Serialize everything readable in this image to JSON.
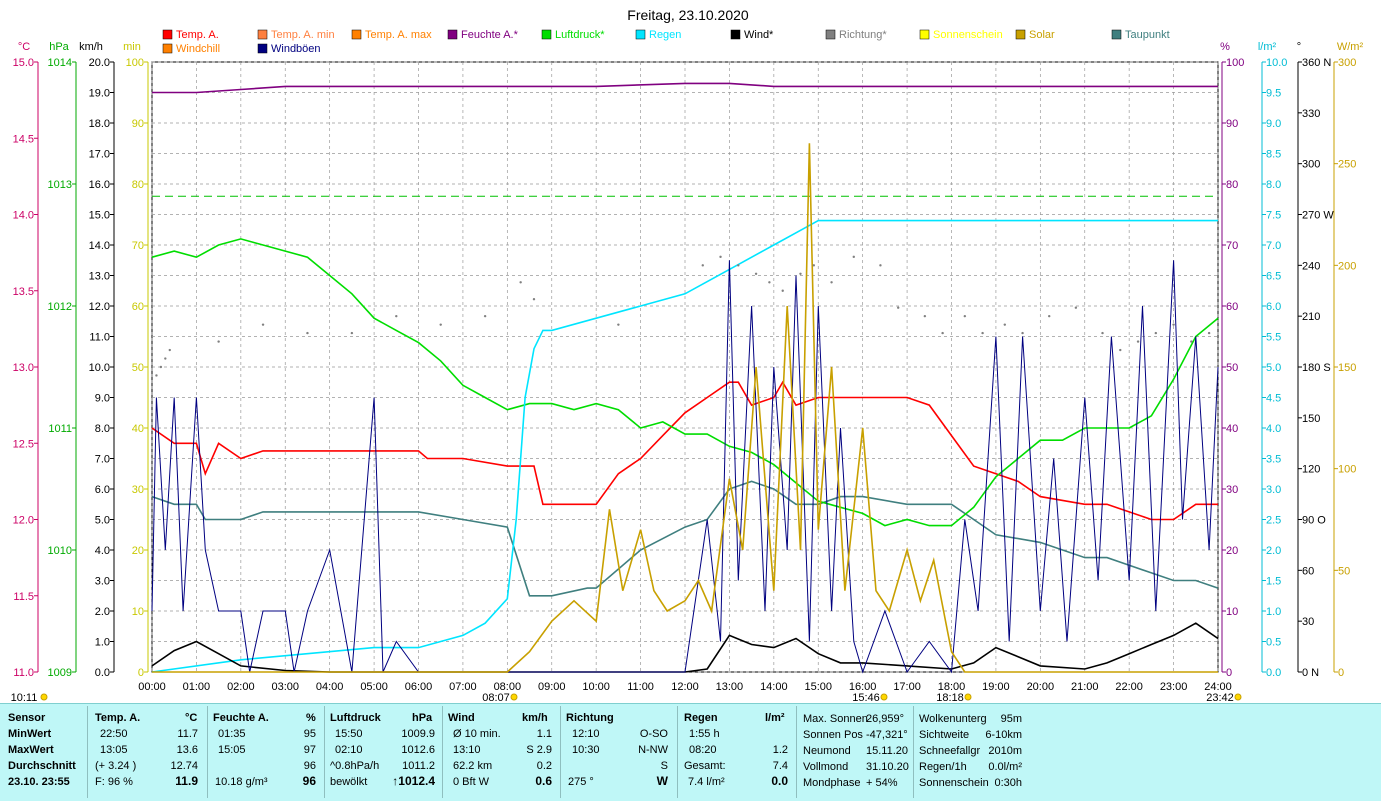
{
  "title": "Freitag, 23.10.2020",
  "legend": [
    {
      "label": "Temp. A.",
      "color": "#ff0000"
    },
    {
      "label": "Temp. A. min",
      "color": "#ff8040"
    },
    {
      "label": "Temp. A. max",
      "color": "#ff8000"
    },
    {
      "label": "Feuchte A.*",
      "color": "#800080"
    },
    {
      "label": "Luftdruck*",
      "color": "#00dd00"
    },
    {
      "label": "Regen",
      "color": "#00e5ff"
    },
    {
      "label": "Wind*",
      "color": "#000000"
    },
    {
      "label": "Richtung*",
      "color": "#808080"
    },
    {
      "label": "Sonnenschein",
      "color": "#ffff00"
    },
    {
      "label": "Solar",
      "color": "#c8a000"
    },
    {
      "label": "Taupunkt",
      "color": "#3f7f7f"
    },
    {
      "label": "Windchill",
      "color": "#ff8000"
    },
    {
      "label": "Windböen",
      "color": "#000080"
    }
  ],
  "axis_units": {
    "temp": "°C",
    "pressure": "hPa",
    "wind": "km/h",
    "sun": "min",
    "humidity": "%",
    "rain": "l/m²",
    "direction": "°",
    "solar": "W/m²"
  },
  "left_axes": {
    "temp": [
      "15.0",
      "14.5",
      "14.0",
      "13.5",
      "13.0",
      "12.5",
      "12.0",
      "11.5",
      "11.0"
    ],
    "pressure": [
      "1014",
      "1013",
      "1012",
      "1011",
      "1010",
      "1009"
    ],
    "wind": [
      "20.0",
      "19.0",
      "18.0",
      "17.0",
      "16.0",
      "15.0",
      "14.0",
      "13.0",
      "12.0",
      "11.0",
      "10.0",
      "9.0",
      "8.0",
      "7.0",
      "6.0",
      "5.0",
      "4.0",
      "3.0",
      "2.0",
      "1.0",
      "0.0"
    ],
    "sun": [
      "100",
      "90",
      "80",
      "70",
      "60",
      "50",
      "40",
      "30",
      "20",
      "10",
      "0"
    ]
  },
  "right_axes": {
    "humidity": [
      "100",
      "90",
      "80",
      "70",
      "60",
      "50",
      "40",
      "30",
      "20",
      "10",
      "0"
    ],
    "rain": [
      "10.0",
      "9.5",
      "9.0",
      "8.5",
      "8.0",
      "7.5",
      "7.0",
      "6.5",
      "6.0",
      "5.5",
      "5.0",
      "4.5",
      "4.0",
      "3.5",
      "3.0",
      "2.5",
      "2.0",
      "1.5",
      "1.0",
      "0.5",
      "0.0"
    ],
    "direction": [
      "360 N",
      "330",
      "300",
      "270 W",
      "240",
      "210",
      "180 S",
      "150",
      "120",
      "90 O",
      "60",
      "30",
      "0 N"
    ],
    "solar": [
      "300",
      "250",
      "200",
      "150",
      "100",
      "50",
      "0"
    ]
  },
  "time_axis": [
    "00:00",
    "01:00",
    "02:00",
    "03:00",
    "04:00",
    "05:00",
    "06:00",
    "07:00",
    "08:00",
    "09:00",
    "10:00",
    "11:00",
    "12:00",
    "13:00",
    "14:00",
    "15:00",
    "16:00",
    "17:00",
    "18:00",
    "19:00",
    "20:00",
    "21:00",
    "22:00",
    "23:00",
    "24:00"
  ],
  "sun_markers": [
    "10:11",
    "08:07",
    "15:46",
    "18:18",
    "23:42"
  ],
  "chart_data": {
    "type": "line",
    "x_unit": "hours",
    "xlim": [
      0,
      24
    ],
    "series": [
      {
        "name": "Temp. A.",
        "axis": "temp",
        "color": "#ff0000",
        "x": [
          0,
          0.5,
          1,
          1.2,
          1.5,
          2,
          2.5,
          3,
          4,
          5,
          6,
          6.2,
          7,
          8,
          8.6,
          8.8,
          9,
          10,
          10.5,
          11,
          11.5,
          12,
          12.5,
          13,
          13.2,
          13.5,
          14,
          14.2,
          14.5,
          15,
          15.5,
          16,
          17,
          17.5,
          18,
          18.5,
          19,
          19.5,
          20,
          21,
          21.5,
          22,
          22.5,
          23,
          23.5,
          24
        ],
        "y": [
          12.6,
          12.5,
          12.5,
          12.3,
          12.5,
          12.4,
          12.45,
          12.45,
          12.45,
          12.45,
          12.45,
          12.4,
          12.4,
          12.35,
          12.35,
          12.1,
          12.1,
          12.1,
          12.3,
          12.4,
          12.55,
          12.7,
          12.8,
          12.9,
          12.9,
          12.75,
          12.8,
          12.9,
          12.75,
          12.8,
          12.8,
          12.8,
          12.8,
          12.75,
          12.55,
          12.35,
          12.3,
          12.25,
          12.15,
          12.1,
          12.1,
          12.05,
          12.0,
          12.0,
          12.1,
          12.1
        ]
      },
      {
        "name": "Taupunkt",
        "axis": "temp",
        "color": "#3f7f7f",
        "x": [
          0,
          0.5,
          1,
          1.2,
          1.5,
          2,
          2.5,
          3,
          4,
          5,
          6,
          7,
          8,
          8.5,
          9,
          9.8,
          10,
          11,
          12,
          12.5,
          13,
          13.5,
          14,
          14.5,
          15,
          15.5,
          16,
          17,
          18,
          18.5,
          19,
          20,
          21,
          21.5,
          22,
          22.5,
          23,
          23.5,
          24
        ],
        "y": [
          12.15,
          12.1,
          12.1,
          12.0,
          12.0,
          12.0,
          12.05,
          12.05,
          12.05,
          12.05,
          12.05,
          12.0,
          11.95,
          11.5,
          11.5,
          11.55,
          11.55,
          11.8,
          11.95,
          12.0,
          12.2,
          12.25,
          12.2,
          12.1,
          12.1,
          12.15,
          12.15,
          12.1,
          12.1,
          12.0,
          11.9,
          11.85,
          11.75,
          11.75,
          11.7,
          11.65,
          11.6,
          11.6,
          11.55
        ]
      },
      {
        "name": "Feuchte A.*",
        "axis": "humidity",
        "color": "#800080",
        "x": [
          0,
          1,
          2,
          3,
          4,
          5,
          6,
          8,
          10,
          12,
          13,
          14,
          15,
          16,
          18,
          20,
          22,
          24
        ],
        "y": [
          95,
          95,
          95.5,
          96,
          96,
          96,
          96,
          96,
          96,
          96.5,
          96.5,
          96,
          96,
          96,
          96,
          96,
          96,
          96
        ]
      },
      {
        "name": "Luftdruck*",
        "axis": "pressure",
        "color": "#00dd00",
        "x": [
          0,
          0.5,
          1,
          1.5,
          2,
          2.5,
          3,
          3.5,
          4,
          4.5,
          5,
          5.5,
          6,
          6.5,
          7,
          7.5,
          8,
          8.5,
          9,
          9.5,
          10,
          10.5,
          11,
          11.5,
          12,
          12.5,
          13,
          13.5,
          14,
          14.5,
          15,
          15.5,
          16,
          16.5,
          17,
          17.5,
          18,
          18.5,
          19,
          19.5,
          20,
          20.5,
          21,
          21.5,
          22,
          22.5,
          23,
          23.5,
          24
        ],
        "y": [
          1012.4,
          1012.45,
          1012.4,
          1012.5,
          1012.55,
          1012.5,
          1012.45,
          1012.4,
          1012.25,
          1012.1,
          1011.9,
          1011.8,
          1011.7,
          1011.55,
          1011.35,
          1011.25,
          1011.15,
          1011.2,
          1011.2,
          1011.15,
          1011.2,
          1011.15,
          1011.0,
          1011.05,
          1010.95,
          1010.95,
          1010.85,
          1010.8,
          1010.7,
          1010.55,
          1010.4,
          1010.35,
          1010.3,
          1010.2,
          1010.25,
          1010.2,
          1010.2,
          1010.35,
          1010.6,
          1010.75,
          1010.9,
          1010.9,
          1011.0,
          1011.0,
          1011.0,
          1011.1,
          1011.4,
          1011.75,
          1011.9
        ]
      },
      {
        "name": "Regen",
        "axis": "rain",
        "color": "#00e5ff",
        "x": [
          0,
          2,
          5,
          6,
          7,
          7.5,
          8,
          8.2,
          8.4,
          8.6,
          8.8,
          9,
          10,
          11,
          12,
          13,
          14,
          14.5,
          15,
          16,
          18,
          20,
          22,
          24
        ],
        "y": [
          0,
          0.2,
          0.4,
          0.4,
          0.6,
          0.8,
          1.2,
          2.5,
          4.5,
          5.3,
          5.6,
          5.6,
          5.8,
          6.0,
          6.2,
          6.6,
          7.0,
          7.2,
          7.4,
          7.4,
          7.4,
          7.4,
          7.4,
          7.4
        ]
      },
      {
        "name": "Wind*",
        "axis": "wind",
        "color": "#000000",
        "x": [
          0,
          0.5,
          1,
          1.5,
          2,
          3,
          4,
          5,
          6,
          8,
          10,
          12,
          12.5,
          13,
          13.5,
          14,
          14.5,
          15,
          15.5,
          16,
          17,
          18,
          18.5,
          19,
          20,
          21,
          21.5,
          22,
          22.5,
          23,
          23.5,
          24
        ],
        "y": [
          0.2,
          0.7,
          1.0,
          0.6,
          0.2,
          0.05,
          0,
          0,
          0,
          0,
          0,
          0,
          0.1,
          1.2,
          0.9,
          0.8,
          1.1,
          0.6,
          0.3,
          0.3,
          0.2,
          0.1,
          0.3,
          0.8,
          0.2,
          0.1,
          0.3,
          0.6,
          0.9,
          1.2,
          1.6,
          1.1
        ]
      },
      {
        "name": "Windböen",
        "axis": "wind",
        "color": "#000080",
        "x": [
          0,
          0.1,
          0.3,
          0.5,
          0.7,
          1,
          1.2,
          1.5,
          2,
          2.2,
          2.5,
          3,
          3.2,
          3.5,
          4,
          4.5,
          5,
          5.2,
          5.5,
          6,
          8,
          9,
          10,
          11,
          12,
          12.5,
          12.8,
          13,
          13.2,
          13.5,
          13.8,
          14,
          14.3,
          14.5,
          14.8,
          15,
          15.3,
          15.5,
          15.8,
          16,
          16.5,
          17,
          17.5,
          18,
          18.3,
          18.6,
          19,
          19.3,
          19.6,
          20,
          20.3,
          20.6,
          21,
          21.3,
          21.6,
          22,
          22.3,
          22.6,
          23,
          23.2,
          23.5,
          23.8,
          24
        ],
        "y": [
          2,
          9,
          4,
          9,
          2,
          9,
          4,
          2,
          2,
          0,
          2,
          2,
          0,
          2,
          4,
          0,
          9,
          0,
          1,
          0,
          0,
          0,
          0,
          0,
          0,
          5,
          1,
          13.5,
          3,
          12,
          2,
          10,
          4,
          13,
          1,
          12,
          2,
          8,
          1,
          0,
          2,
          0,
          1,
          0,
          5,
          2,
          11,
          1,
          11,
          2,
          7,
          1,
          9,
          3,
          11,
          3,
          12,
          2,
          13.5,
          5,
          11,
          4,
          10
        ]
      },
      {
        "name": "Solar",
        "axis": "solar",
        "color": "#c8a000",
        "x": [
          0,
          8,
          8.5,
          9,
          9.5,
          10,
          10.3,
          10.6,
          11,
          11.3,
          11.6,
          12,
          12.3,
          12.6,
          13,
          13.3,
          13.6,
          14,
          14.3,
          14.6,
          14.8,
          15,
          15.3,
          15.6,
          16,
          16.3,
          16.6,
          17,
          17.3,
          17.6,
          18,
          18.3,
          24
        ],
        "y": [
          0,
          0,
          10,
          25,
          35,
          25,
          80,
          40,
          70,
          40,
          30,
          35,
          45,
          30,
          95,
          60,
          150,
          40,
          180,
          60,
          260,
          70,
          150,
          40,
          120,
          40,
          30,
          60,
          35,
          55,
          10,
          0,
          0
        ]
      }
    ],
    "points": [
      {
        "name": "Richtung*",
        "axis": "direction",
        "color": "#808080",
        "x": [
          0.1,
          0.2,
          0.3,
          0.4,
          1.5,
          2.5,
          3.5,
          4.5,
          5.5,
          6.5,
          7.5,
          8.3,
          8.6,
          10.5,
          12.4,
          12.8,
          13.2,
          13.6,
          13.9,
          14.2,
          14.6,
          14.9,
          15.3,
          15.8,
          16.4,
          16.8,
          17.4,
          17.8,
          18.3,
          18.7,
          19.2,
          19.6,
          20.2,
          20.8,
          21.4,
          21.8,
          22.2,
          22.6,
          23.0,
          23.4,
          23.8
        ],
        "y": [
          175,
          180,
          185,
          190,
          195,
          205,
          200,
          200,
          210,
          205,
          210,
          230,
          220,
          205,
          240,
          245,
          240,
          235,
          230,
          225,
          235,
          240,
          230,
          245,
          240,
          215,
          210,
          200,
          210,
          200,
          205,
          200,
          210,
          215,
          200,
          190,
          195,
          200,
          205,
          195,
          200
        ]
      }
    ],
    "min_temp_line": {
      "axis": "pressure",
      "value": 1012.9,
      "color": "#00c000"
    }
  },
  "stats": {
    "sensor": {
      "header": "Sensor",
      "rows": [
        "MinWert",
        "MaxWert",
        "Durchschnitt",
        "23.10.  23:55"
      ]
    },
    "temp": {
      "header": "Temp. A.",
      "unit": "°C",
      "rows": [
        [
          "22:50",
          "11.7"
        ],
        [
          "13:05",
          "13.6"
        ],
        [
          "(+ 3.24 )",
          "12.74"
        ],
        [
          "F: 96 %",
          "11.9"
        ]
      ]
    },
    "humidity": {
      "header": "Feuchte A.",
      "unit": "%",
      "rows": [
        [
          "01:35",
          "95"
        ],
        [
          "15:05",
          "97"
        ],
        [
          "",
          "96"
        ],
        [
          "10.18 g/m³",
          "96"
        ]
      ]
    },
    "pressure": {
      "header": "Luftdruck",
      "unit": "hPa",
      "rows": [
        [
          "15:50",
          "1009.9"
        ],
        [
          "02:10",
          "1012.6"
        ],
        [
          "^0.8hPa/h",
          "1011.2"
        ],
        [
          "bewölkt",
          "↑1012.4"
        ]
      ]
    },
    "wind": {
      "header": "Wind",
      "unit": "km/h",
      "rows": [
        [
          "Ø 10 min.",
          "1.1"
        ],
        [
          "13:10",
          "S 2.9"
        ],
        [
          "62.2 km",
          "0.2"
        ],
        [
          "0 Bft W",
          "0.6"
        ]
      ]
    },
    "direction": {
      "header": "Richtung",
      "rows": [
        [
          "12:10",
          "O-SO"
        ],
        [
          "10:30",
          "N-NW"
        ],
        [
          "",
          "S"
        ],
        [
          "275 °",
          "W"
        ]
      ]
    },
    "rain": {
      "header": "Regen",
      "unit": "l/m²",
      "rows": [
        [
          "1:55 h",
          ""
        ],
        [
          "08:20",
          "1.2"
        ],
        [
          "Gesamt:",
          "7.4"
        ],
        [
          "7.4 l/m²",
          "0.0"
        ]
      ]
    },
    "sun": {
      "rows": [
        [
          "Max. Sonnen",
          "26,959°"
        ],
        [
          "Sonnen Pos",
          "-47,321°"
        ],
        [
          "Neumond",
          "15.11.20"
        ],
        [
          "Vollmond",
          "31.10.20"
        ],
        [
          "Mondphase",
          "+ 54%"
        ]
      ]
    },
    "clouds": {
      "rows": [
        [
          "Wolkenunterg",
          "95m"
        ],
        [
          "Sichtweite",
          "6-10km"
        ],
        [
          "Schneefallgr",
          "2010m"
        ],
        [
          "Regen/1h",
          "0.0l/m²"
        ],
        [
          "Sonnenschein",
          "0:30h"
        ]
      ]
    }
  }
}
